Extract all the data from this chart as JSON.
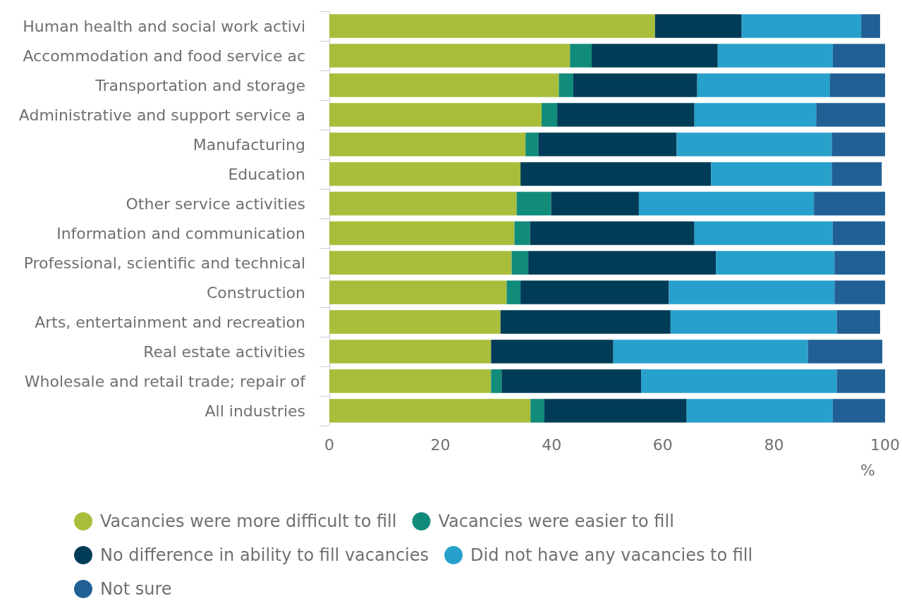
{
  "chart_data": {
    "type": "bar",
    "orientation": "horizontal",
    "stacked": true,
    "categories": [
      "Human health and social work activi",
      "Accommodation and food service ac",
      "Transportation and storage",
      "Administrative and support service a",
      "Manufacturing",
      "Education",
      "Other service activities",
      "Information and communication",
      "Professional, scientific and technical",
      "Construction",
      "Arts, entertainment and recreation",
      "Real estate activities",
      "Wholesale and retail trade; repair of",
      "All industries"
    ],
    "series": [
      {
        "name": "Vacancies were more difficult to fill",
        "color": "#a8bd3a",
        "values": [
          58.6,
          43.3,
          41.3,
          38.2,
          35.3,
          34.4,
          33.7,
          33.3,
          32.8,
          31.9,
          30.8,
          29.1,
          29.1,
          36.2
        ]
      },
      {
        "name": "Vacancies were easier to fill",
        "color": "#118c7b",
        "values": [
          0,
          3.9,
          2.6,
          2.8,
          2.3,
          0,
          6.2,
          2.8,
          3.0,
          2.5,
          0,
          0,
          1.9,
          2.5
        ]
      },
      {
        "name": "No difference in ability to fill vacancies",
        "color": "#003c57",
        "values": [
          15.6,
          22.7,
          22.3,
          24.7,
          24.9,
          34.3,
          15.8,
          29.6,
          33.8,
          26.7,
          30.6,
          22.0,
          25.1,
          25.6
        ]
      },
      {
        "name": "Did not have any vacancies to fill",
        "color": "#27a0cc",
        "values": [
          21.5,
          20.7,
          23.9,
          21.9,
          27.9,
          21.7,
          31.5,
          24.9,
          21.3,
          29.8,
          29.9,
          35.0,
          35.2,
          26.3
        ]
      },
      {
        "name": "Not sure",
        "color": "#206095",
        "values": [
          3.4,
          9.4,
          9.9,
          12.4,
          9.6,
          9.0,
          12.8,
          9.4,
          9.1,
          9.1,
          7.8,
          13.4,
          8.7,
          9.4
        ]
      }
    ],
    "xlim": [
      0,
      100
    ],
    "xticks": [
      0,
      20,
      40,
      60,
      80,
      100
    ],
    "xlabel": "%",
    "grid": false,
    "legend": "bottom",
    "marker": "circle"
  }
}
